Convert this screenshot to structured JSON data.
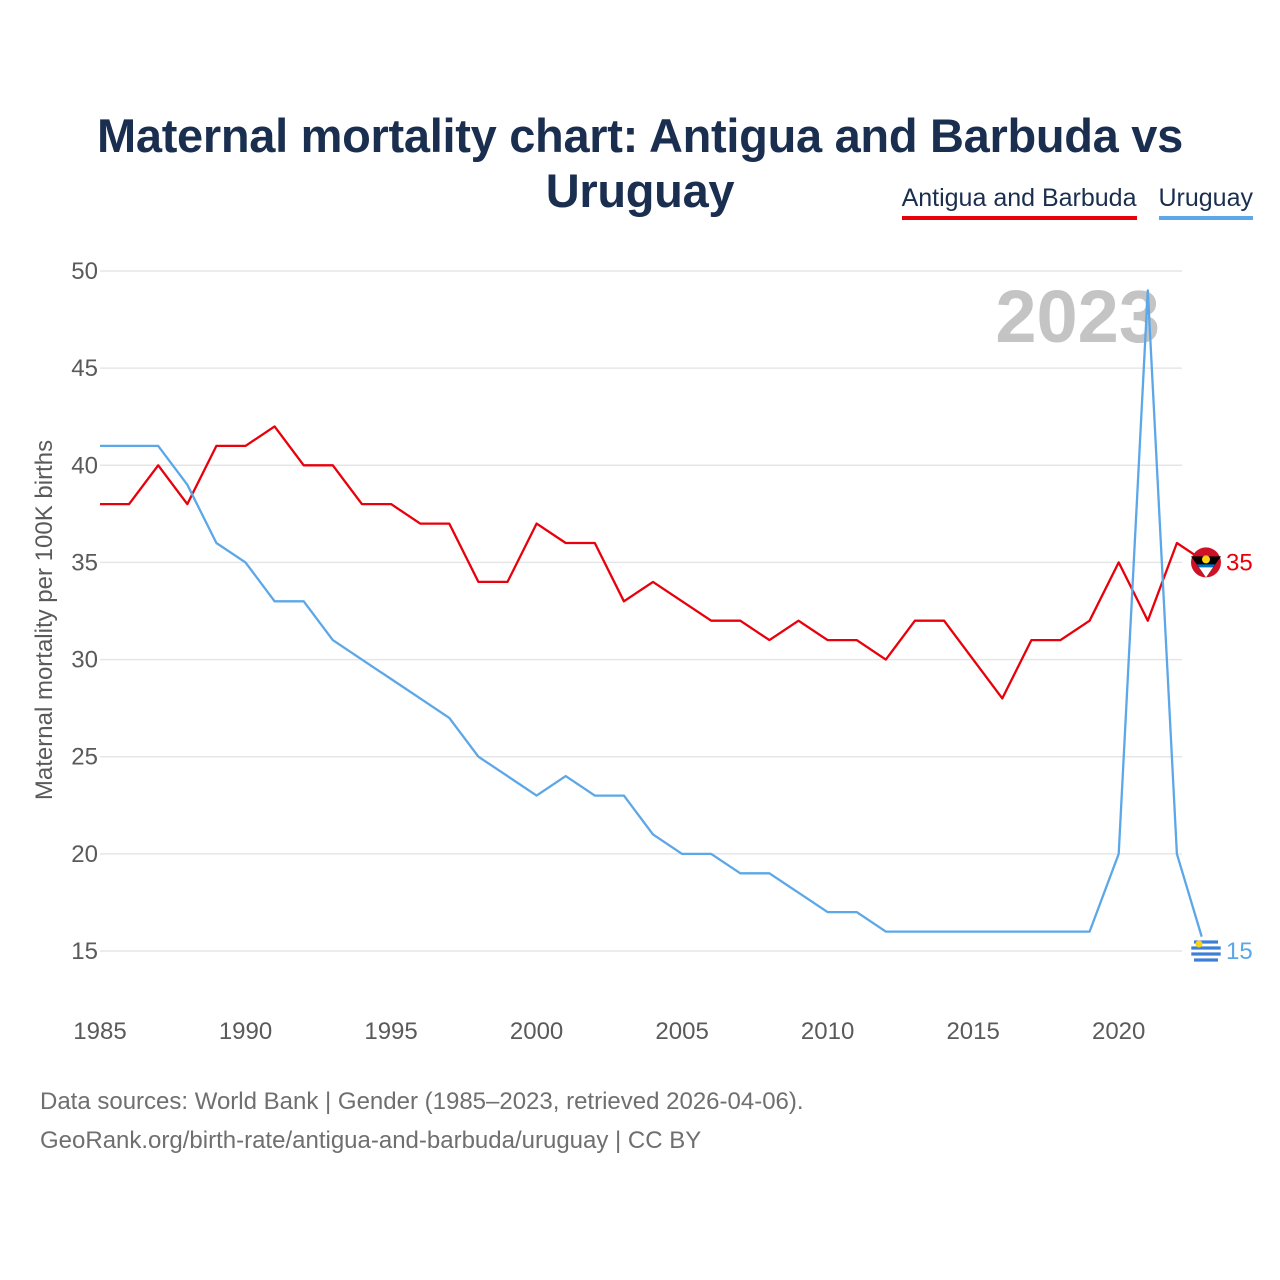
{
  "chart_data": {
    "type": "line",
    "title": "Maternal mortality chart: Antigua and Barbuda vs Uruguay",
    "ylabel": "Maternal mortality per 100K births",
    "xlabel": "",
    "ylim": [
      15,
      50
    ],
    "xlim": [
      1985,
      2023
    ],
    "yticks": [
      15,
      20,
      25,
      30,
      35,
      40,
      45,
      50
    ],
    "xticks": [
      1985,
      1990,
      1995,
      2000,
      2005,
      2010,
      2015,
      2020
    ],
    "year_watermark": "2023",
    "x": [
      1985,
      1986,
      1987,
      1988,
      1989,
      1990,
      1991,
      1992,
      1993,
      1994,
      1995,
      1996,
      1997,
      1998,
      1999,
      2000,
      2001,
      2002,
      2003,
      2004,
      2005,
      2006,
      2007,
      2008,
      2009,
      2010,
      2011,
      2012,
      2013,
      2014,
      2015,
      2016,
      2017,
      2018,
      2019,
      2020,
      2021,
      2022,
      2023
    ],
    "series": [
      {
        "name": "Antigua and Barbuda",
        "color": "#e8000b",
        "end_label": "35",
        "values": [
          38,
          38,
          40,
          38,
          41,
          41,
          42,
          40,
          40,
          38,
          38,
          37,
          37,
          34,
          34,
          37,
          36,
          36,
          33,
          34,
          33,
          32,
          32,
          31,
          32,
          31,
          31,
          30,
          32,
          32,
          30,
          28,
          31,
          31,
          32,
          35,
          32,
          36,
          35
        ]
      },
      {
        "name": "Uruguay",
        "color": "#5ca7e8",
        "end_label": "15",
        "values": [
          41,
          41,
          41,
          39,
          36,
          35,
          33,
          33,
          31,
          30,
          29,
          28,
          27,
          25,
          24,
          23,
          24,
          23,
          23,
          21,
          20,
          20,
          19,
          19,
          18,
          17,
          17,
          16,
          16,
          16,
          16,
          16,
          16,
          16,
          16,
          20,
          49,
          20,
          15
        ]
      }
    ]
  },
  "footer": {
    "line1": "Data sources: World Bank | Gender (1985–2023, retrieved 2026-04-06).",
    "line2": "GeoRank.org/birth-rate/antigua-and-barbuda/uruguay | CC BY"
  }
}
